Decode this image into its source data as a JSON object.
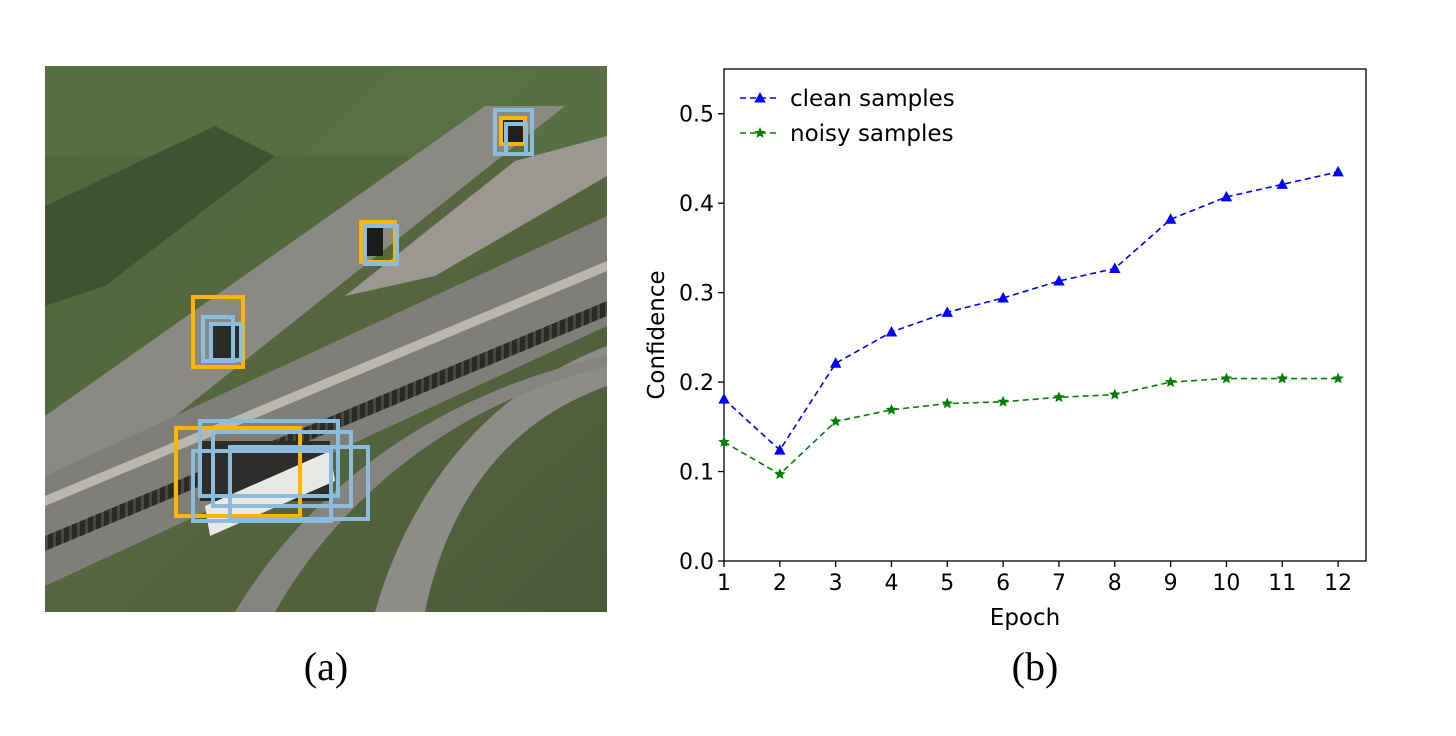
{
  "panel_a": {
    "caption": "(a)",
    "box_colors": {
      "orange": "#FFB400",
      "blue": "#8DBBDC"
    }
  },
  "panel_b": {
    "caption": "(b)"
  },
  "chart_data": {
    "type": "line",
    "x": [
      1,
      2,
      3,
      4,
      5,
      6,
      7,
      8,
      9,
      10,
      11,
      12
    ],
    "xlabel": "Epoch",
    "ylabel": "Confidence",
    "xlim": [
      1,
      12.5
    ],
    "ylim": [
      0.0,
      0.55
    ],
    "yticks": [
      "0.0",
      "0.1",
      "0.2",
      "0.3",
      "0.4",
      "0.5"
    ],
    "xticks": [
      "1",
      "2",
      "3",
      "4",
      "5",
      "6",
      "7",
      "8",
      "9",
      "10",
      "11",
      "12"
    ],
    "legend_position": "top-left",
    "grid": false,
    "series": [
      {
        "name": "clean samples",
        "color": "#0000FF",
        "marker": "triangle",
        "linestyle": "dashed",
        "values": [
          0.181,
          0.124,
          0.221,
          0.256,
          0.278,
          0.294,
          0.313,
          0.327,
          0.382,
          0.407,
          0.421,
          0.435
        ]
      },
      {
        "name": "noisy samples",
        "color": "#008000",
        "marker": "star",
        "linestyle": "dashed",
        "values": [
          0.133,
          0.097,
          0.156,
          0.169,
          0.176,
          0.178,
          0.183,
          0.186,
          0.2,
          0.204,
          0.204,
          0.204
        ]
      }
    ]
  }
}
